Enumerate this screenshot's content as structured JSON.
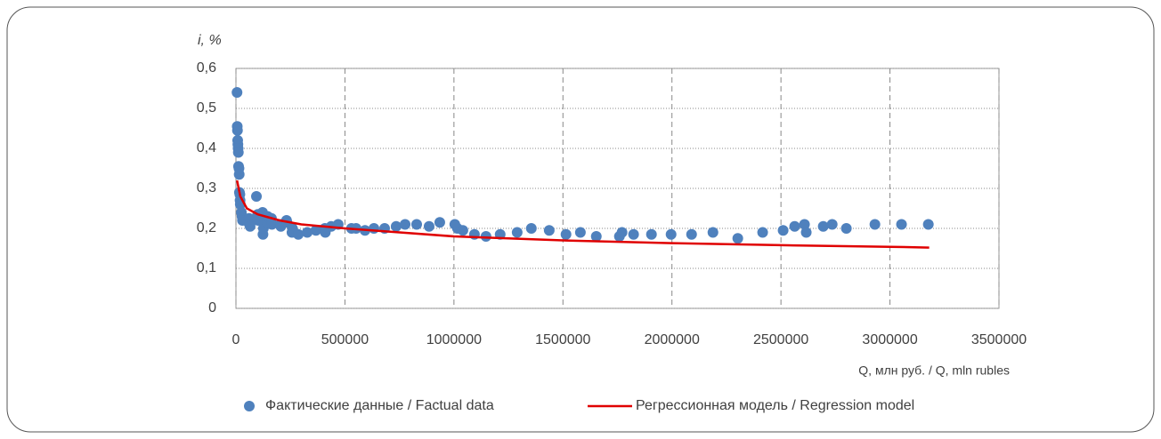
{
  "chart_data": {
    "type": "scatter",
    "y_label": "i, %",
    "x_label": "Q, млн руб. / Q, mln rubles",
    "xlim": [
      0,
      3500000
    ],
    "xticks": [
      0,
      500000,
      1000000,
      1500000,
      2000000,
      2500000,
      3000000,
      3500000
    ],
    "ylim": [
      0,
      0.6
    ],
    "yticks": [
      0,
      {
        "value": 0.1,
        "label": "0,1"
      },
      {
        "value": 0.2,
        "label": "0,2"
      },
      {
        "value": 0.3,
        "label": "0,3"
      },
      {
        "value": 0.4,
        "label": "0,4"
      },
      {
        "value": 0.5,
        "label": "0,5"
      },
      {
        "value": 0.6,
        "label": "0,6"
      }
    ],
    "x_grid": "dashed",
    "y_grid": "dotted",
    "legend": "bottom",
    "series": [
      {
        "name": "Фактические данные / Factual data",
        "color": "#4f81bd",
        "x": [
          5000,
          6000,
          7000,
          8000,
          9000,
          10000,
          11000,
          12000,
          14000,
          15000,
          16000,
          18000,
          19000,
          20000,
          25000,
          28000,
          30000,
          60000,
          62000,
          65000,
          94000,
          100000,
          102000,
          122000,
          124000,
          126000,
          143000,
          145000,
          163000,
          165000,
          204000,
          206000,
          232000,
          234000,
          257000,
          259000,
          286000,
          327000,
          367000,
          408000,
          410000,
          437000,
          469000,
          530000,
          551000,
          592000,
          633000,
          682000,
          735000,
          776000,
          829000,
          886000,
          935000,
          1004000,
          1016000,
          1041000,
          1094000,
          1147000,
          1212000,
          1290000,
          1355000,
          1437000,
          1514000,
          1580000,
          1653000,
          1759000,
          1771000,
          1824000,
          1906000,
          1996000,
          2090000,
          2188000,
          2302000,
          2416000,
          2510000,
          2563000,
          2608000,
          2616000,
          2694000,
          2735000,
          2800000,
          2931000,
          3053000,
          3176000
        ],
        "values": [
          0.54,
          0.455,
          0.445,
          0.42,
          0.41,
          0.4,
          0.39,
          0.355,
          0.35,
          0.335,
          0.29,
          0.285,
          0.27,
          0.26,
          0.24,
          0.23,
          0.22,
          0.225,
          0.21,
          0.205,
          0.28,
          0.235,
          0.22,
          0.24,
          0.185,
          0.2,
          0.215,
          0.23,
          0.225,
          0.21,
          0.21,
          0.205,
          0.22,
          0.215,
          0.19,
          0.2,
          0.185,
          0.19,
          0.195,
          0.2,
          0.19,
          0.205,
          0.21,
          0.2,
          0.2,
          0.195,
          0.2,
          0.2,
          0.205,
          0.21,
          0.21,
          0.205,
          0.215,
          0.21,
          0.2,
          0.195,
          0.185,
          0.18,
          0.185,
          0.19,
          0.2,
          0.195,
          0.185,
          0.19,
          0.18,
          0.18,
          0.19,
          0.185,
          0.185,
          0.185,
          0.185,
          0.19,
          0.175,
          0.19,
          0.195,
          0.205,
          0.21,
          0.19,
          0.205,
          0.21,
          0.2,
          0.21,
          0.21,
          0.21
        ]
      },
      {
        "name": "Регрессионная модель / Regression model",
        "color": "#e00000",
        "type": "line",
        "x": [
          5000,
          20000,
          50000,
          100000,
          200000,
          300000,
          500000,
          750000,
          1000000,
          1500000,
          2000000,
          2500000,
          3000000,
          3180000
        ],
        "values": [
          0.32,
          0.28,
          0.25,
          0.235,
          0.22,
          0.21,
          0.2,
          0.19,
          0.18,
          0.17,
          0.163,
          0.158,
          0.154,
          0.152
        ]
      }
    ]
  }
}
